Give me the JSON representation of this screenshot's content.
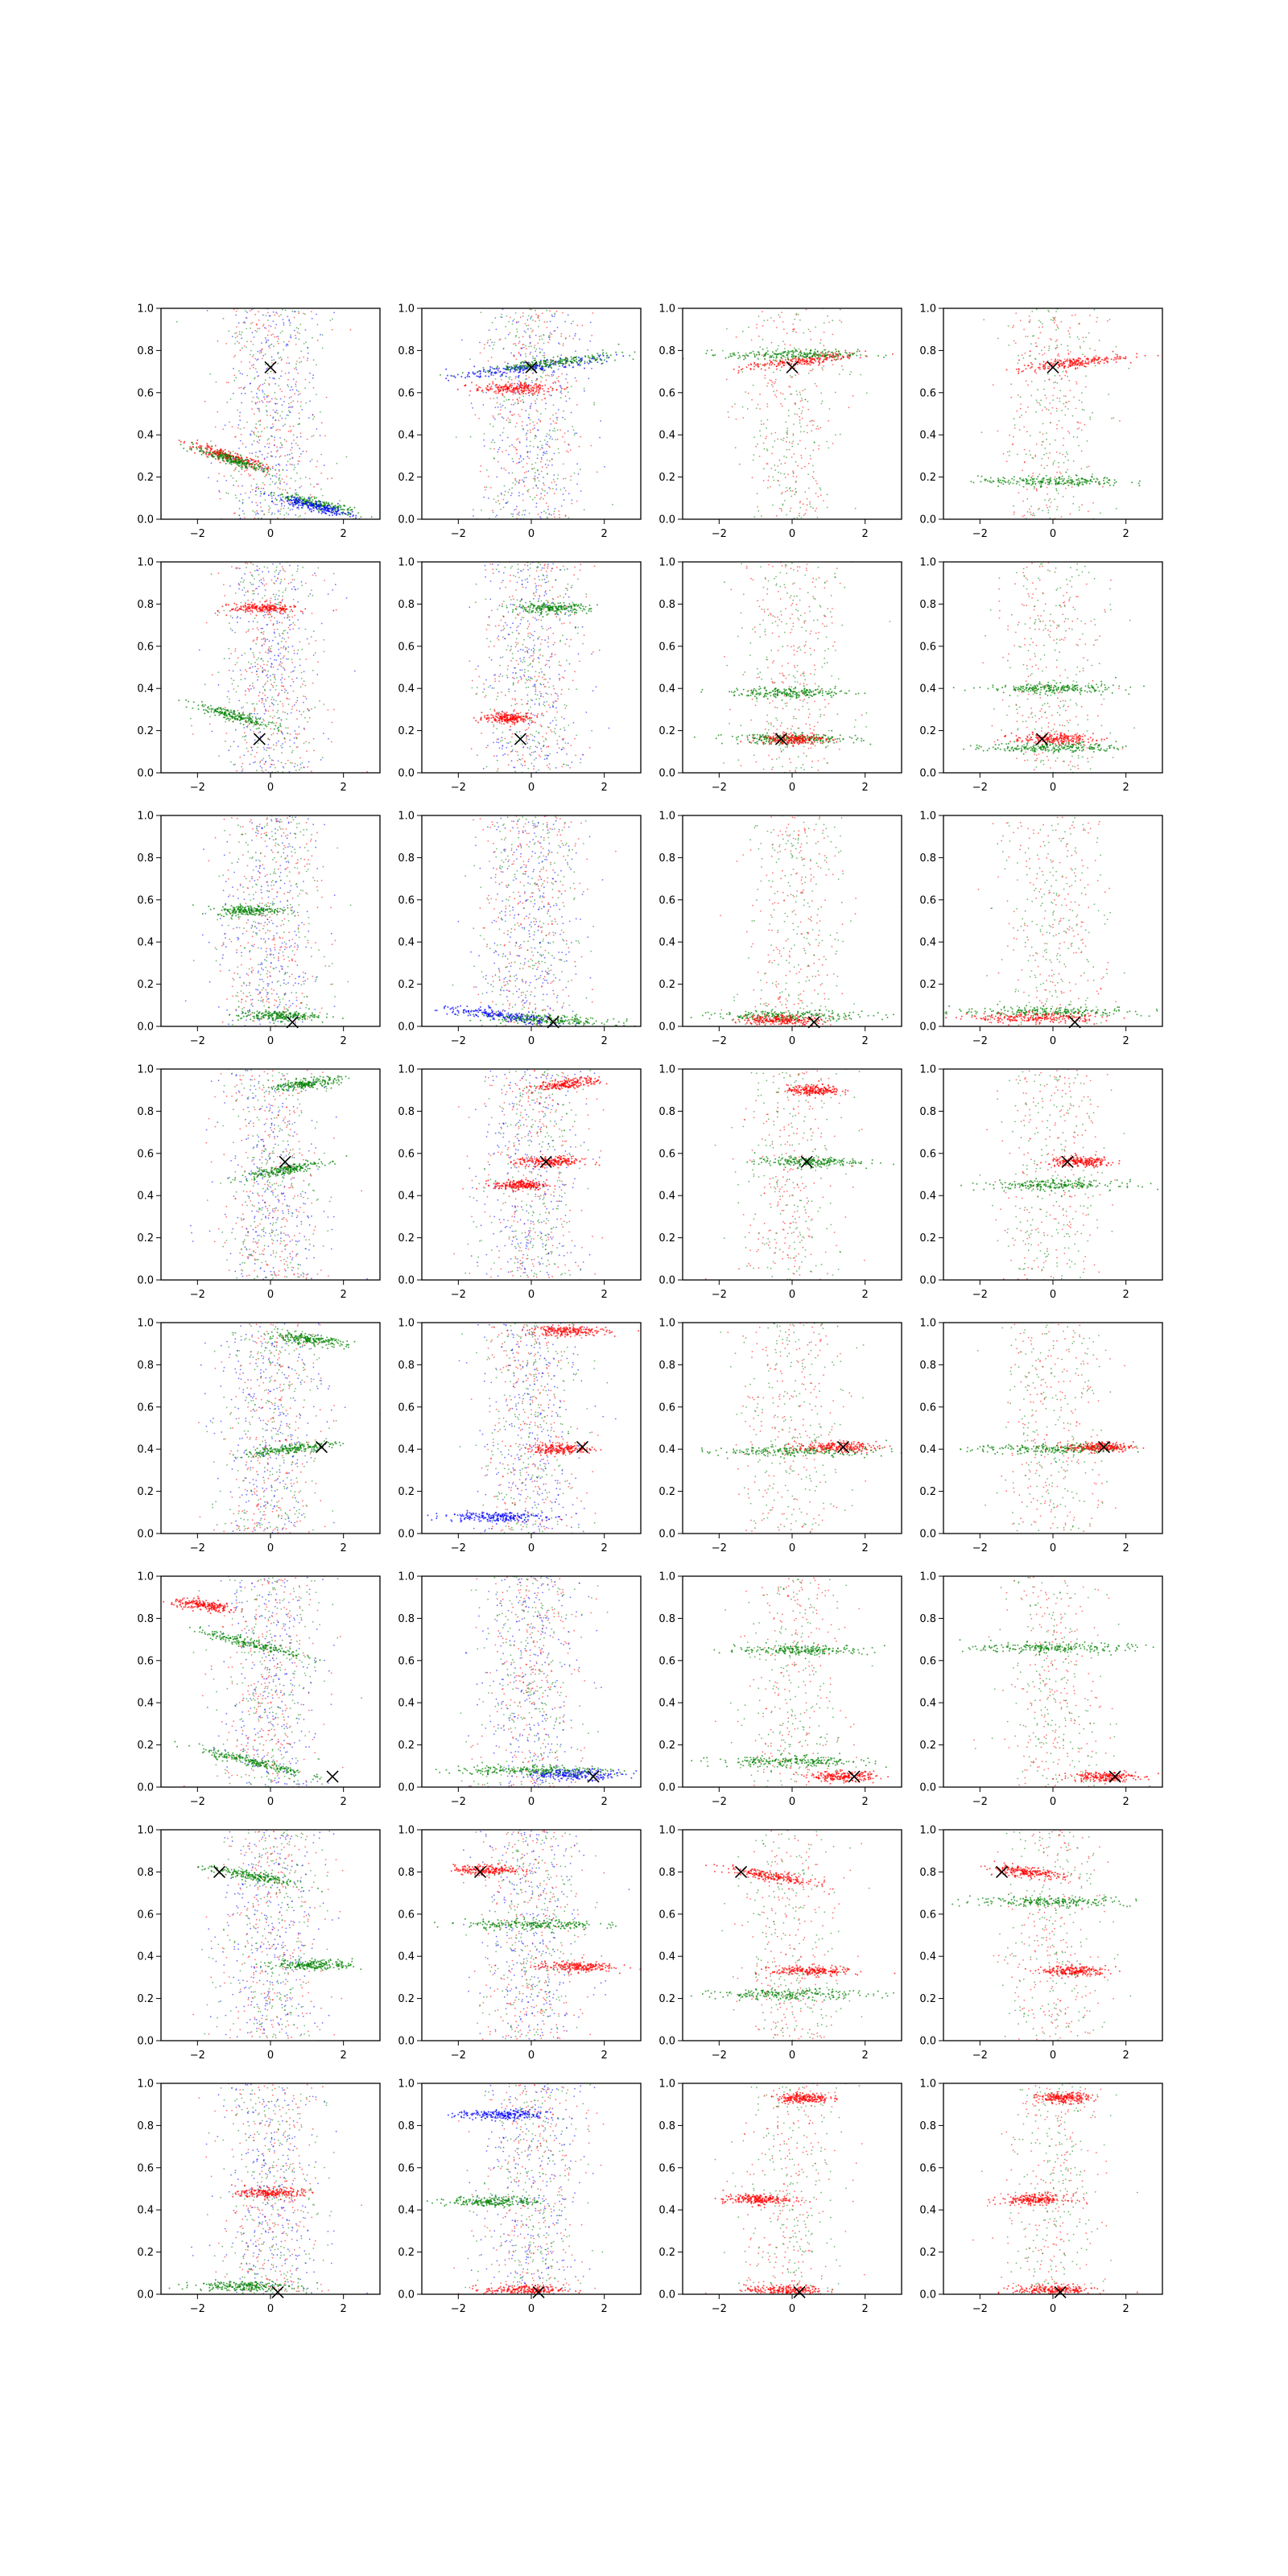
{
  "chart_data": {
    "type": "scatter",
    "layout": {
      "rows": 8,
      "cols": 4
    },
    "xlim": [
      -3,
      3
    ],
    "ylim": [
      0,
      1
    ],
    "xticks": [
      -2,
      0,
      2
    ],
    "yticks": [
      0.0,
      0.2,
      0.4,
      0.6,
      0.8,
      1.0
    ],
    "xtick_labels": [
      "−2",
      "0",
      "2"
    ],
    "ytick_labels": [
      "0.0",
      "0.2",
      "0.4",
      "0.6",
      "0.8",
      "1.0"
    ],
    "grid": false,
    "legend": "none",
    "colors": {
      "red": "#ff0000",
      "green": "#008000",
      "blue": "#0000ff",
      "marker": "#000000"
    },
    "panels_note_per_row_marker": "black X marker at the same point in every panel of a row",
    "rows": [
      {
        "marker": [
          0.0,
          0.72
        ],
        "bands": [
          [
            {
              "color": "red",
              "y": 0.3,
              "x": -1.2,
              "w": 1.2,
              "slope": -0.05
            },
            {
              "color": "green",
              "y": 0.28,
              "x": -1.0,
              "w": 1.2,
              "slope": -0.05
            },
            {
              "color": "green",
              "y": 0.07,
              "x": 1.3,
              "w": 1.2,
              "slope": -0.04
            },
            {
              "color": "blue",
              "y": 0.06,
              "x": 1.2,
              "w": 1.2,
              "slope": -0.04
            }
          ],
          [
            {
              "color": "blue",
              "y": 0.72,
              "x": 0.0,
              "w": 2.2,
              "slope": 0.02
            },
            {
              "color": "green",
              "y": 0.74,
              "x": 0.5,
              "w": 2.2,
              "slope": 0.02
            },
            {
              "color": "red",
              "y": 0.62,
              "x": -0.5,
              "w": 1.2,
              "slope": 0.0
            }
          ],
          [
            {
              "color": "red",
              "y": 0.75,
              "x": 0.3,
              "w": 1.8,
              "slope": 0.02
            },
            {
              "color": "green",
              "y": 0.78,
              "x": 0.0,
              "w": 2.0,
              "slope": 0.0
            }
          ],
          [
            {
              "color": "red",
              "y": 0.74,
              "x": 0.5,
              "w": 1.6,
              "slope": 0.02
            },
            {
              "color": "green",
              "y": 0.18,
              "x": 0.0,
              "w": 2.2,
              "slope": 0.0
            }
          ]
        ]
      },
      {
        "marker": [
          -0.3,
          0.16
        ],
        "bands": [
          [
            {
              "color": "green",
              "y": 0.27,
              "x": -1.0,
              "w": 1.2,
              "slope": -0.05
            },
            {
              "color": "red",
              "y": 0.78,
              "x": -0.2,
              "w": 1.0,
              "slope": 0.0
            }
          ],
          [
            {
              "color": "green",
              "y": 0.78,
              "x": 0.5,
              "w": 1.2,
              "slope": 0.0
            },
            {
              "color": "red",
              "y": 0.26,
              "x": -0.6,
              "w": 0.8,
              "slope": 0.0
            }
          ],
          [
            {
              "color": "green",
              "y": 0.16,
              "x": 0.0,
              "w": 2.0,
              "slope": 0.0
            },
            {
              "color": "green",
              "y": 0.38,
              "x": 0.0,
              "w": 1.8,
              "slope": 0.0
            },
            {
              "color": "red",
              "y": 0.16,
              "x": 0.0,
              "w": 1.0,
              "slope": 0.0
            }
          ],
          [
            {
              "color": "green",
              "y": 0.4,
              "x": 0.0,
              "w": 2.0,
              "slope": 0.0
            },
            {
              "color": "red",
              "y": 0.16,
              "x": 0.0,
              "w": 1.2,
              "slope": 0.0
            },
            {
              "color": "green",
              "y": 0.12,
              "x": 0.0,
              "w": 2.0,
              "slope": 0.0
            }
          ]
        ]
      },
      {
        "marker": [
          0.6,
          0.02
        ],
        "bands": [
          [
            {
              "color": "green",
              "y": 0.55,
              "x": -0.6,
              "w": 1.0,
              "slope": 0.0
            },
            {
              "color": "green",
              "y": 0.05,
              "x": 0.2,
              "w": 1.2,
              "slope": 0.0
            }
          ],
          [
            {
              "color": "blue",
              "y": 0.05,
              "x": -0.8,
              "w": 2.0,
              "slope": -0.02
            },
            {
              "color": "green",
              "y": 0.03,
              "x": 0.5,
              "w": 2.0,
              "slope": -0.01
            }
          ],
          [
            {
              "color": "green",
              "y": 0.05,
              "x": 0.0,
              "w": 2.4,
              "slope": 0.0
            },
            {
              "color": "red",
              "y": 0.03,
              "x": -0.3,
              "w": 1.2,
              "slope": 0.0
            }
          ],
          [
            {
              "color": "green",
              "y": 0.07,
              "x": 0.0,
              "w": 3.0,
              "slope": 0.0
            },
            {
              "color": "red",
              "y": 0.04,
              "x": -0.5,
              "w": 2.0,
              "slope": 0.0
            }
          ]
        ]
      },
      {
        "marker": [
          0.4,
          0.56
        ],
        "bands": [
          [
            {
              "color": "green",
              "y": 0.52,
              "x": 0.3,
              "w": 1.2,
              "slope": 0.03
            },
            {
              "color": "green",
              "y": 0.93,
              "x": 1.0,
              "w": 1.0,
              "slope": 0.02
            }
          ],
          [
            {
              "color": "red",
              "y": 0.93,
              "x": 1.0,
              "w": 1.0,
              "slope": 0.02
            },
            {
              "color": "red",
              "y": 0.56,
              "x": 0.5,
              "w": 1.0,
              "slope": 0.0
            },
            {
              "color": "red",
              "y": 0.45,
              "x": -0.3,
              "w": 0.8,
              "slope": 0.0
            }
          ],
          [
            {
              "color": "green",
              "y": 0.56,
              "x": 0.4,
              "w": 1.6,
              "slope": 0.0
            },
            {
              "color": "red",
              "y": 0.9,
              "x": 0.6,
              "w": 0.8,
              "slope": 0.0
            }
          ],
          [
            {
              "color": "red",
              "y": 0.56,
              "x": 0.8,
              "w": 1.0,
              "slope": 0.0
            },
            {
              "color": "green",
              "y": 0.45,
              "x": 0.0,
              "w": 2.0,
              "slope": 0.0
            }
          ]
        ]
      },
      {
        "marker": [
          1.4,
          0.41
        ],
        "bands": [
          [
            {
              "color": "green",
              "y": 0.4,
              "x": 0.5,
              "w": 1.4,
              "slope": 0.02
            },
            {
              "color": "green",
              "y": 0.92,
              "x": 1.0,
              "w": 1.2,
              "slope": -0.02
            }
          ],
          [
            {
              "color": "red",
              "y": 0.96,
              "x": 1.0,
              "w": 1.2,
              "slope": 0.0
            },
            {
              "color": "red",
              "y": 0.4,
              "x": 0.8,
              "w": 1.0,
              "slope": 0.0
            },
            {
              "color": "blue",
              "y": 0.08,
              "x": -1.0,
              "w": 1.5,
              "slope": 0.0
            }
          ],
          [
            {
              "color": "green",
              "y": 0.39,
              "x": 0.0,
              "w": 3.0,
              "slope": 0.0
            },
            {
              "color": "red",
              "y": 0.41,
              "x": 1.2,
              "w": 1.2,
              "slope": 0.0
            }
          ],
          [
            {
              "color": "green",
              "y": 0.4,
              "x": 0.0,
              "w": 2.4,
              "slope": 0.0
            },
            {
              "color": "red",
              "y": 0.41,
              "x": 1.3,
              "w": 1.0,
              "slope": 0.0
            }
          ]
        ]
      },
      {
        "marker": [
          1.7,
          0.05
        ],
        "bands": [
          [
            {
              "color": "green",
              "y": 0.68,
              "x": -0.5,
              "w": 1.6,
              "slope": -0.04
            },
            {
              "color": "green",
              "y": 0.12,
              "x": -0.5,
              "w": 1.6,
              "slope": -0.04
            },
            {
              "color": "red",
              "y": 0.86,
              "x": -1.8,
              "w": 1.0,
              "slope": -0.02
            }
          ],
          [
            {
              "color": "blue",
              "y": 0.06,
              "x": 1.2,
              "w": 1.5,
              "slope": 0.0
            },
            {
              "color": "green",
              "y": 0.08,
              "x": 0.0,
              "w": 2.4,
              "slope": 0.0
            }
          ],
          [
            {
              "color": "green",
              "y": 0.65,
              "x": 0.3,
              "w": 2.0,
              "slope": 0.0
            },
            {
              "color": "red",
              "y": 0.05,
              "x": 1.4,
              "w": 1.0,
              "slope": 0.0
            },
            {
              "color": "green",
              "y": 0.12,
              "x": 0.0,
              "w": 2.4,
              "slope": 0.0
            }
          ],
          [
            {
              "color": "red",
              "y": 0.05,
              "x": 1.4,
              "w": 1.0,
              "slope": 0.0
            },
            {
              "color": "green",
              "y": 0.66,
              "x": 0.0,
              "w": 2.4,
              "slope": 0.0
            }
          ]
        ]
      },
      {
        "marker": [
          -1.4,
          0.8
        ],
        "bands": [
          [
            {
              "color": "green",
              "y": 0.36,
              "x": 1.2,
              "w": 1.2,
              "slope": 0.0
            },
            {
              "color": "green",
              "y": 0.78,
              "x": -0.5,
              "w": 1.4,
              "slope": -0.03
            }
          ],
          [
            {
              "color": "red",
              "y": 0.35,
              "x": 1.2,
              "w": 1.2,
              "slope": 0.0
            },
            {
              "color": "red",
              "y": 0.81,
              "x": -1.2,
              "w": 1.0,
              "slope": 0.0
            },
            {
              "color": "green",
              "y": 0.55,
              "x": 0.0,
              "w": 2.0,
              "slope": 0.0
            }
          ],
          [
            {
              "color": "red",
              "y": 0.78,
              "x": -0.6,
              "w": 1.4,
              "slope": -0.03
            },
            {
              "color": "red",
              "y": 0.33,
              "x": 0.5,
              "w": 1.2,
              "slope": 0.0
            },
            {
              "color": "green",
              "y": 0.22,
              "x": 0.0,
              "w": 2.4,
              "slope": 0.0
            }
          ],
          [
            {
              "color": "red",
              "y": 0.8,
              "x": -0.8,
              "w": 1.2,
              "slope": -0.02
            },
            {
              "color": "green",
              "y": 0.66,
              "x": 0.0,
              "w": 2.4,
              "slope": 0.0
            },
            {
              "color": "red",
              "y": 0.33,
              "x": 0.6,
              "w": 1.0,
              "slope": 0.0
            }
          ]
        ]
      },
      {
        "marker": [
          0.2,
          0.01
        ],
        "bands": [
          [
            {
              "color": "green",
              "y": 0.04,
              "x": -0.8,
              "w": 1.4,
              "slope": 0.0
            },
            {
              "color": "red",
              "y": 0.48,
              "x": 0.0,
              "w": 1.0,
              "slope": 0.0
            }
          ],
          [
            {
              "color": "green",
              "y": 0.44,
              "x": -1.0,
              "w": 1.4,
              "slope": 0.0
            },
            {
              "color": "blue",
              "y": 0.85,
              "x": -0.8,
              "w": 1.4,
              "slope": 0.0
            },
            {
              "color": "red",
              "y": 0.02,
              "x": -0.2,
              "w": 1.2,
              "slope": 0.0
            }
          ],
          [
            {
              "color": "red",
              "y": 0.45,
              "x": -1.0,
              "w": 1.0,
              "slope": 0.0
            },
            {
              "color": "red",
              "y": 0.02,
              "x": -0.2,
              "w": 1.2,
              "slope": 0.0
            },
            {
              "color": "red",
              "y": 0.93,
              "x": 0.3,
              "w": 0.8,
              "slope": 0.0
            }
          ],
          [
            {
              "color": "red",
              "y": 0.45,
              "x": -0.5,
              "w": 1.0,
              "slope": 0.0
            },
            {
              "color": "red",
              "y": 0.02,
              "x": 0.0,
              "w": 1.2,
              "slope": 0.0
            },
            {
              "color": "red",
              "y": 0.93,
              "x": 0.3,
              "w": 0.8,
              "slope": 0.0
            }
          ]
        ]
      }
    ],
    "background_noise": [
      {
        "color": "red",
        "density": 0.25
      },
      {
        "color": "green",
        "density": 0.4
      },
      {
        "color": "blue",
        "density": 0.35
      }
    ]
  }
}
